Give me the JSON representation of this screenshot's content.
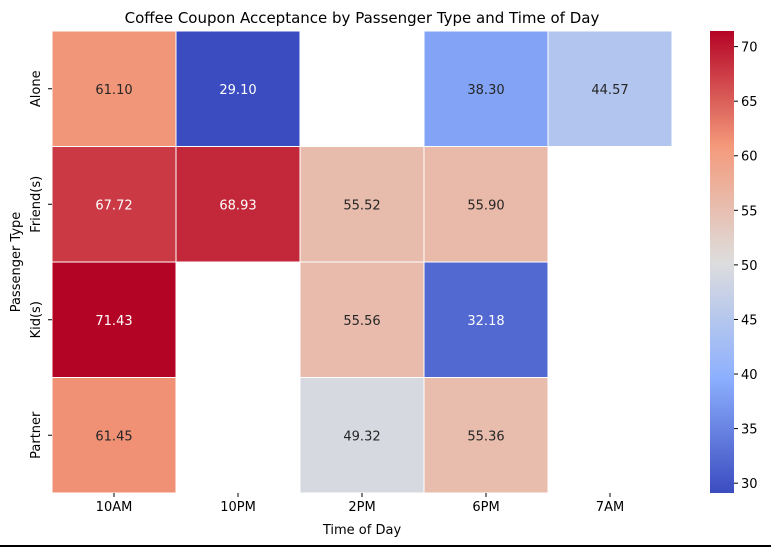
{
  "chart_data": {
    "type": "heatmap",
    "title": "Coffee Coupon Acceptance by Passenger Type and Time of Day",
    "xlabel": "Time of Day",
    "ylabel": "Passenger Type",
    "x_categories": [
      "10AM",
      "10PM",
      "2PM",
      "6PM",
      "7AM"
    ],
    "y_categories": [
      "Alone",
      "Friend(s)",
      "Kid(s)",
      "Partner"
    ],
    "values": [
      [
        61.1,
        29.1,
        null,
        38.3,
        44.57
      ],
      [
        67.72,
        68.93,
        55.52,
        55.9,
        null
      ],
      [
        71.43,
        null,
        55.56,
        32.18,
        null
      ],
      [
        61.45,
        null,
        49.32,
        55.36,
        null
      ]
    ],
    "colormap": "coolwarm",
    "vmin": 29.1,
    "vmax": 71.43,
    "colorbar": {
      "ticks": [
        30,
        35,
        40,
        45,
        50,
        55,
        60,
        65,
        70
      ]
    },
    "annotation_format": "0.00"
  }
}
